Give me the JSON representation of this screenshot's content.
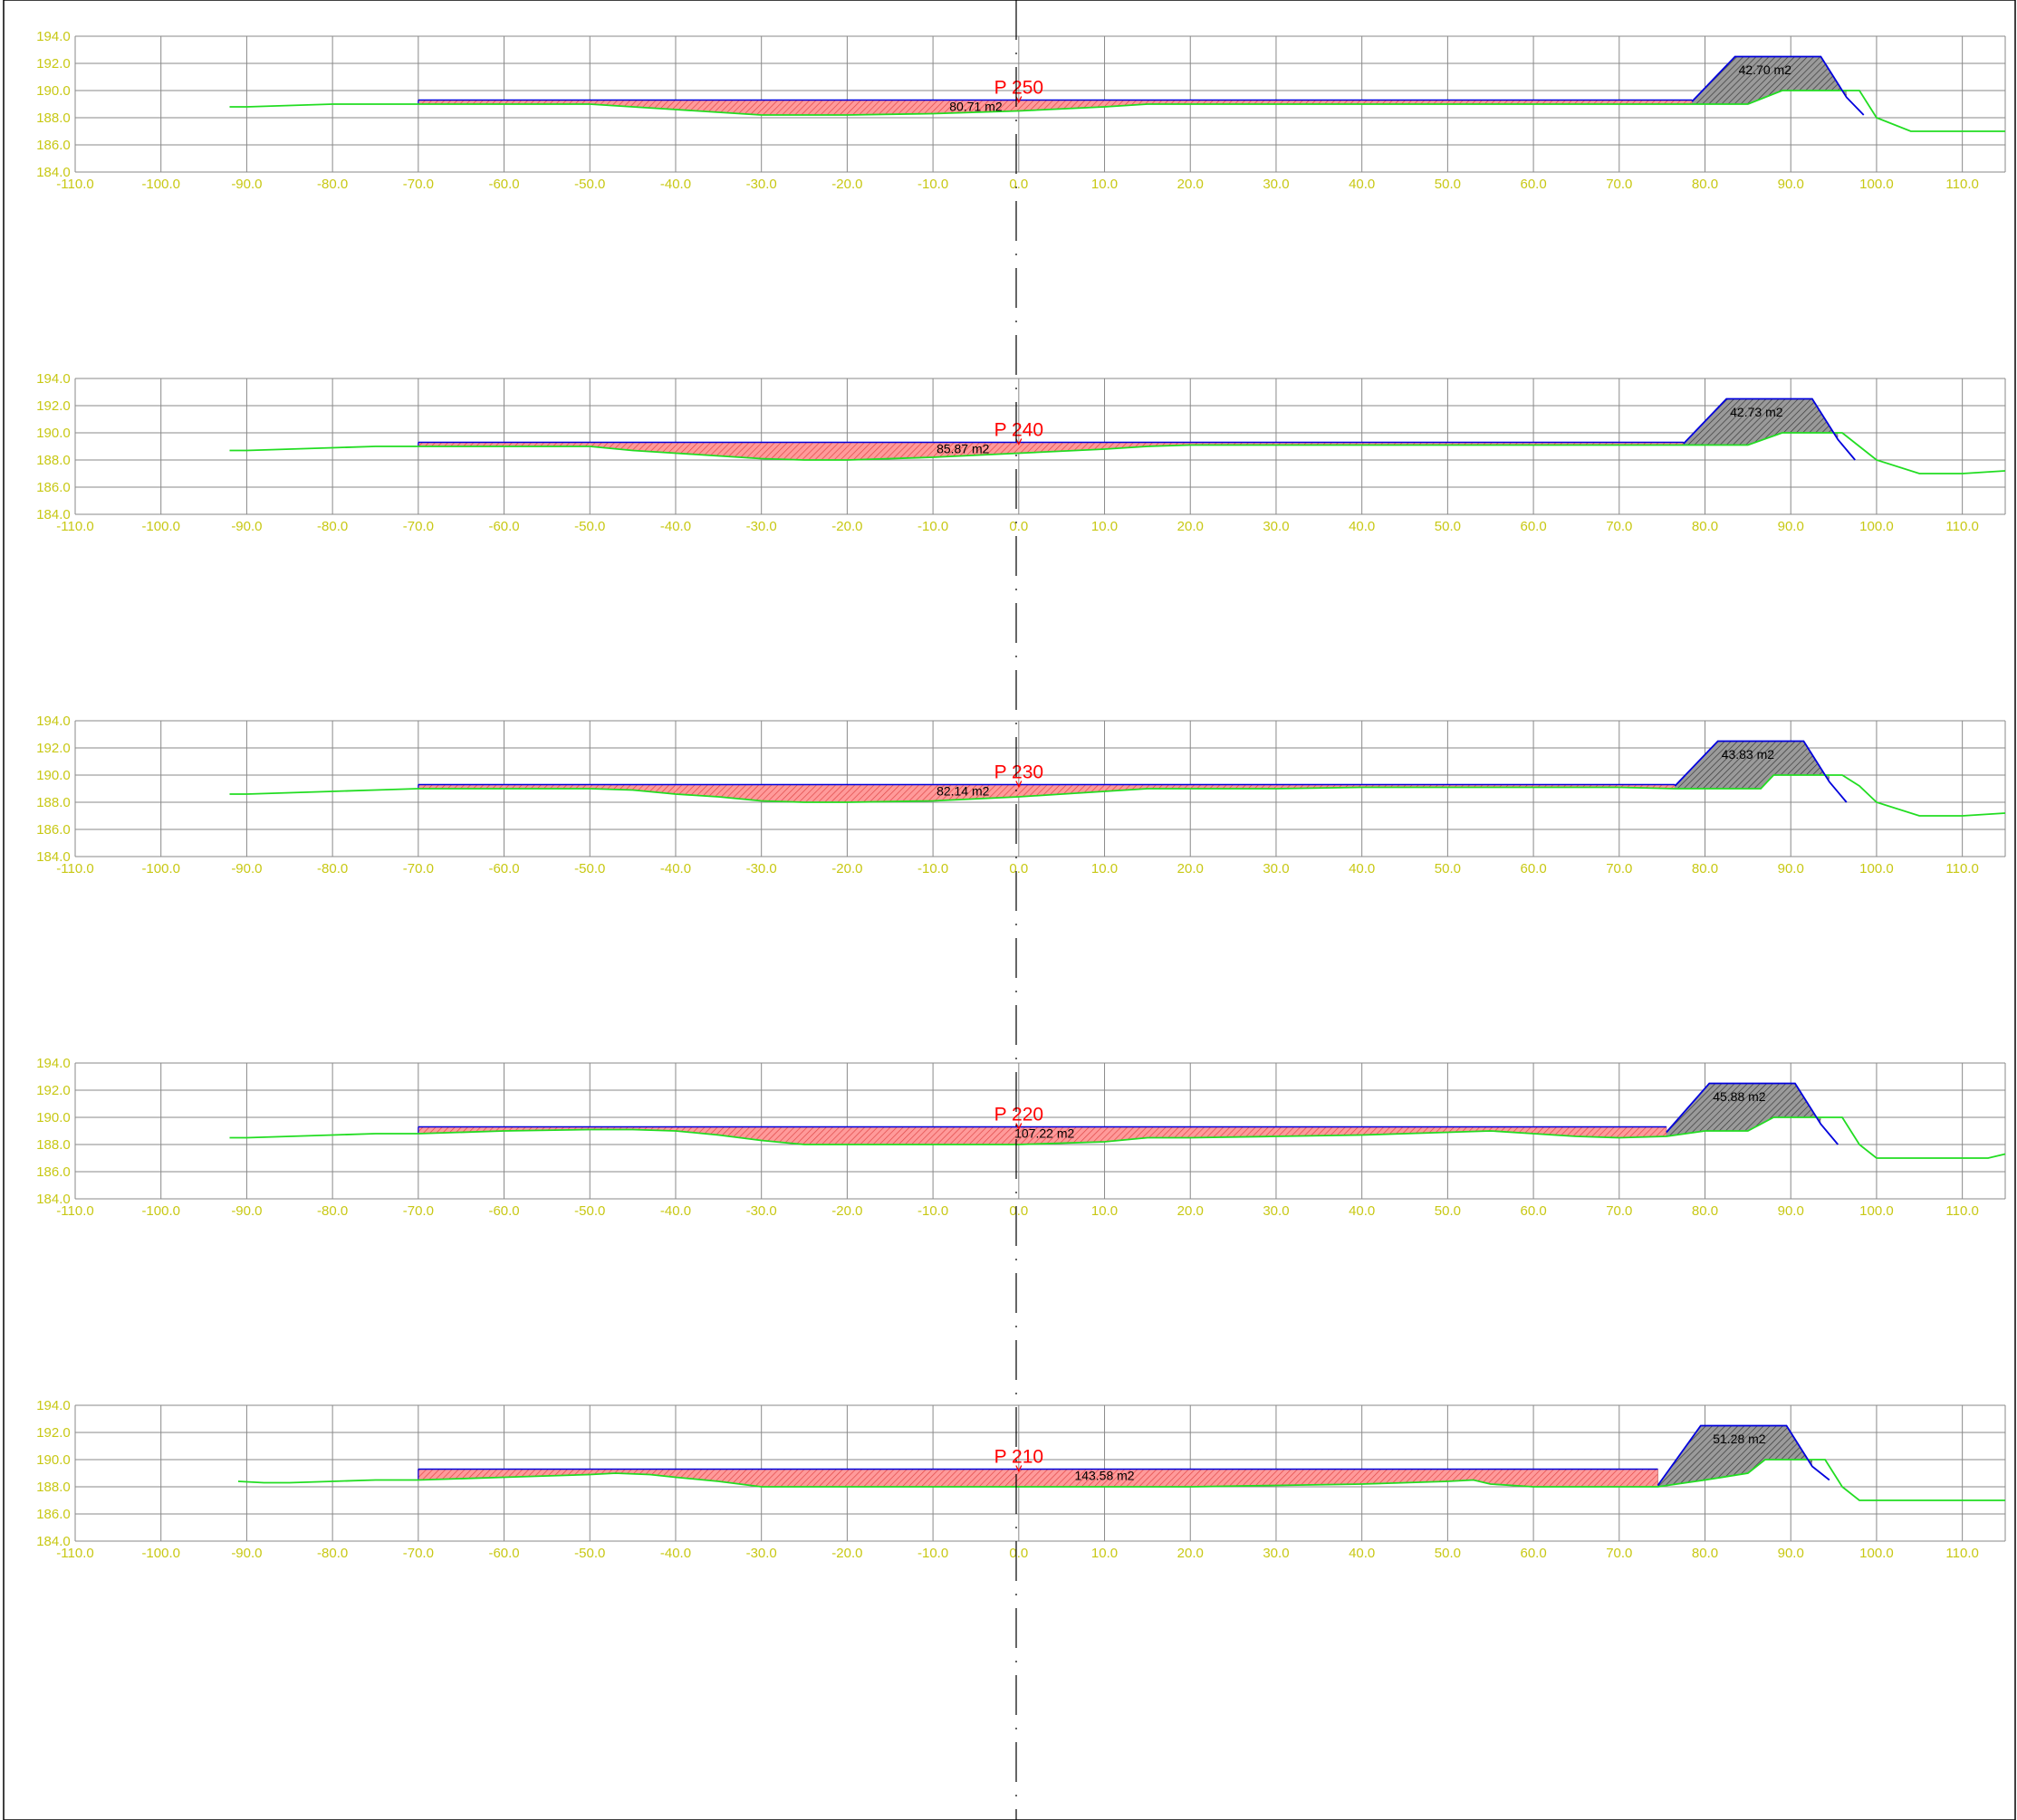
{
  "colors": {
    "grid": "#8a8a8a",
    "tick_label": "#c8c814",
    "ground_line": "#22dd22",
    "design_line": "#0000dd",
    "cut_fill": "#ff8080",
    "embankment_fill": "#808080",
    "title": "#ff0000",
    "area_label": "#000000",
    "centerline": "#000000"
  },
  "axes": {
    "x_range": [
      -110,
      115
    ],
    "x_ticks": [
      -110,
      -100,
      -90,
      -80,
      -70,
      -60,
      -50,
      -40,
      -30,
      -20,
      -10,
      0,
      10,
      20,
      30,
      40,
      50,
      60,
      70,
      80,
      90,
      100,
      110
    ],
    "x_tick_labels": [
      "-110.0",
      "-100.0",
      "-90.0",
      "-80.0",
      "-70.0",
      "-60.0",
      "-50.0",
      "-40.0",
      "-30.0",
      "-20.0",
      "-10.0",
      "0.0",
      "10.0",
      "20.0",
      "30.0",
      "40.0",
      "50.0",
      "60.0",
      "70.0",
      "80.0",
      "90.0",
      "100.0",
      "110.0"
    ],
    "y_range": [
      184,
      194
    ],
    "y_ticks": [
      184,
      186,
      188,
      190,
      192,
      194
    ],
    "y_tick_labels": [
      "184.0",
      "186.0",
      "188.0",
      "190.0",
      "192.0",
      "194.0"
    ],
    "grid": true
  },
  "chart_data": [
    {
      "type": "line",
      "title": "P 250",
      "cut_area_label": "80.71 m2",
      "cut_label_x": -5,
      "embankment_area_label": "42.70 m2",
      "embankment_label_x": 87,
      "design_level": 189.3,
      "cut_x_range": [
        -70,
        78.5
      ],
      "ground": {
        "x": [
          -92,
          -90,
          -85,
          -80,
          -75,
          -70,
          -50,
          -45,
          -40,
          -35,
          -30,
          -20,
          -10,
          0,
          10,
          15,
          20,
          30,
          40,
          50,
          60,
          70,
          78.5,
          85,
          89,
          90,
          92,
          94,
          96,
          98,
          100,
          104,
          110,
          115
        ],
        "y": [
          188.8,
          188.8,
          188.9,
          189.0,
          189.0,
          189.0,
          189.0,
          188.8,
          188.6,
          188.4,
          188.2,
          188.2,
          188.3,
          188.5,
          188.8,
          189.0,
          189.0,
          189.0,
          189.0,
          189.0,
          189.0,
          189.0,
          189.0,
          189.0,
          190.0,
          190.0,
          190.0,
          190.0,
          190.0,
          190.0,
          188.0,
          187.0,
          187.0,
          187.0
        ]
      },
      "embankment": {
        "x": [
          78.5,
          83.5,
          93.5,
          96.5,
          98.5
        ],
        "y": [
          189.2,
          192.5,
          192.5,
          189.5,
          188.2
        ]
      }
    },
    {
      "type": "line",
      "title": "P 240",
      "cut_area_label": "85.87 m2",
      "cut_label_x": -6.5,
      "embankment_area_label": "42.73 m2",
      "embankment_label_x": 86,
      "design_level": 189.3,
      "cut_x_range": [
        -70,
        77.5
      ],
      "ground": {
        "x": [
          -92,
          -90,
          -85,
          -80,
          -75,
          -70,
          -50,
          -45,
          -40,
          -35,
          -30,
          -25,
          -20,
          -10,
          0,
          10,
          15,
          20,
          30,
          40,
          50,
          60,
          70,
          77.5,
          85,
          89,
          90,
          92,
          94,
          96,
          98,
          100,
          105,
          110,
          115
        ],
        "y": [
          188.7,
          188.7,
          188.8,
          188.9,
          189.0,
          189.0,
          189.0,
          188.7,
          188.5,
          188.3,
          188.1,
          188.0,
          188.0,
          188.2,
          188.5,
          188.8,
          189.0,
          189.1,
          189.1,
          189.1,
          189.1,
          189.1,
          189.1,
          189.1,
          189.1,
          190.0,
          190.0,
          190.0,
          190.0,
          190.0,
          189.0,
          188.0,
          187.0,
          187.0,
          187.2
        ]
      },
      "embankment": {
        "x": [
          77.5,
          82.5,
          92.5,
          95.5,
          97.5
        ],
        "y": [
          189.2,
          192.5,
          192.5,
          189.5,
          188.0
        ]
      }
    },
    {
      "type": "line",
      "title": "P 230",
      "cut_area_label": "82.14 m2",
      "cut_label_x": -6.5,
      "embankment_area_label": "43.83 m2",
      "embankment_label_x": 85,
      "design_level": 189.3,
      "cut_x_range": [
        -70,
        76.5
      ],
      "ground": {
        "x": [
          -92,
          -90,
          -85,
          -80,
          -75,
          -70,
          -50,
          -45,
          -40,
          -35,
          -30,
          -25,
          -20,
          -10,
          0,
          10,
          15,
          20,
          30,
          40,
          50,
          60,
          70,
          76.5,
          86.5,
          88,
          90,
          92,
          94,
          96,
          98,
          100,
          105,
          110,
          115
        ],
        "y": [
          188.6,
          188.6,
          188.7,
          188.8,
          188.9,
          189.0,
          189.0,
          188.9,
          188.6,
          188.4,
          188.1,
          188.0,
          188.0,
          188.1,
          188.4,
          188.8,
          189.0,
          189.0,
          189.0,
          189.1,
          189.1,
          189.1,
          189.1,
          189.0,
          189.0,
          190.0,
          190.0,
          190.0,
          190.0,
          190.0,
          189.2,
          188.0,
          187.0,
          187.0,
          187.2
        ]
      },
      "embankment": {
        "x": [
          76.5,
          81.5,
          91.5,
          94.5,
          96.5
        ],
        "y": [
          189.2,
          192.5,
          192.5,
          189.5,
          188.0
        ]
      }
    },
    {
      "type": "line",
      "title": "P 220",
      "cut_area_label": "107.22 m2",
      "cut_label_x": 3,
      "embankment_area_label": "45.88 m2",
      "embankment_label_x": 84,
      "design_level": 189.3,
      "cut_x_range": [
        -70,
        75.5
      ],
      "ground": {
        "x": [
          -92,
          -90,
          -85,
          -80,
          -75,
          -70,
          -60,
          -50,
          -45,
          -40,
          -35,
          -30,
          -25,
          -20,
          -10,
          0,
          10,
          15,
          20,
          30,
          40,
          50,
          55,
          60,
          65,
          70,
          75.5,
          80,
          85,
          88,
          90,
          92,
          94,
          96,
          98,
          100,
          105,
          110,
          113,
          115
        ],
        "y": [
          188.5,
          188.5,
          188.6,
          188.7,
          188.8,
          188.8,
          189.0,
          189.1,
          189.1,
          189.0,
          188.7,
          188.3,
          188.0,
          188.0,
          188.0,
          188.0,
          188.2,
          188.5,
          188.5,
          188.6,
          188.7,
          188.9,
          189.0,
          188.8,
          188.6,
          188.5,
          188.6,
          189.0,
          189.0,
          190.0,
          190.0,
          190.0,
          190.0,
          190.0,
          188.0,
          187.0,
          187.0,
          187.0,
          187.0,
          187.3
        ]
      },
      "embankment": {
        "x": [
          75.5,
          80.5,
          90.5,
          93.5,
          95.5
        ],
        "y": [
          188.9,
          192.5,
          192.5,
          189.5,
          188.0
        ]
      }
    },
    {
      "type": "line",
      "title": "P 210",
      "cut_area_label": "143.58 m2",
      "cut_label_x": 10,
      "embankment_area_label": "51.28 m2",
      "embankment_label_x": 84,
      "design_level": 189.3,
      "cut_x_range": [
        -70,
        74.5
      ],
      "ground": {
        "x": [
          -91,
          -88,
          -85,
          -80,
          -75,
          -70,
          -60,
          -50,
          -47,
          -43,
          -40,
          -35,
          -30,
          -20,
          -10,
          0,
          10,
          20,
          30,
          40,
          50,
          53,
          55,
          60,
          65,
          70,
          74.5,
          80,
          85,
          87,
          90,
          92,
          94,
          96,
          98,
          100,
          105,
          110,
          115
        ],
        "y": [
          188.4,
          188.3,
          188.3,
          188.4,
          188.5,
          188.5,
          188.7,
          188.9,
          189.0,
          188.9,
          188.7,
          188.4,
          188.0,
          188.0,
          188.0,
          188.0,
          188.0,
          188.0,
          188.1,
          188.2,
          188.4,
          188.5,
          188.2,
          188.0,
          188.0,
          188.0,
          188.0,
          188.5,
          189.0,
          190.0,
          190.0,
          190.0,
          190.0,
          188.0,
          187.0,
          187.0,
          187.0,
          187.0,
          187.0
        ]
      },
      "embankment": {
        "x": [
          74.5,
          79.5,
          89.5,
          92.5,
          94.5
        ],
        "y": [
          188.1,
          192.5,
          192.5,
          189.5,
          188.5
        ]
      }
    }
  ]
}
